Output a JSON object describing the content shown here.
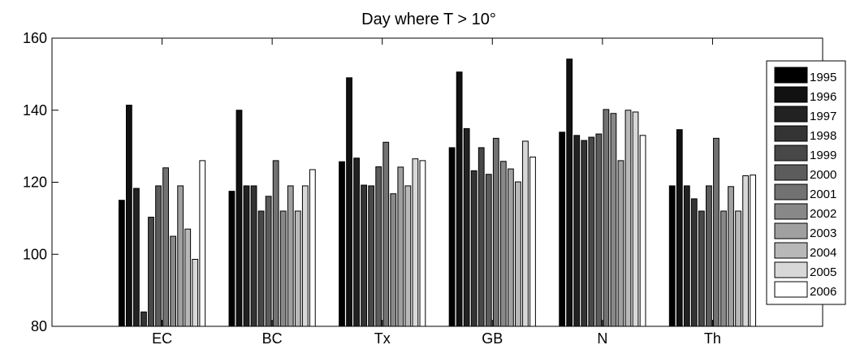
{
  "chart_data": {
    "type": "bar",
    "title": "Day where T > 10°",
    "xlabel": "",
    "ylabel": "",
    "categories": [
      "EC",
      "BC",
      "Tx",
      "GB",
      "N",
      "Th"
    ],
    "ylim": [
      80,
      160
    ],
    "yticks": [
      80,
      100,
      120,
      140,
      160
    ],
    "grid": false,
    "legend_position": "right",
    "series": [
      {
        "name": "1995",
        "color": "#000000",
        "values": [
          115,
          117.5,
          125.7,
          129.6,
          133.9,
          119
        ]
      },
      {
        "name": "1996",
        "color": "#111111",
        "values": [
          141.4,
          140,
          149,
          150.6,
          154.2,
          134.6
        ]
      },
      {
        "name": "1997",
        "color": "#222222",
        "values": [
          118.3,
          119,
          126.7,
          134.9,
          133,
          119
        ]
      },
      {
        "name": "1998",
        "color": "#343434",
        "values": [
          84,
          119,
          119.2,
          123.2,
          131.6,
          115.4
        ]
      },
      {
        "name": "1999",
        "color": "#484848",
        "values": [
          110.3,
          112,
          119,
          129.6,
          132.5,
          112
        ]
      },
      {
        "name": "2000",
        "color": "#5c5c5c",
        "values": [
          119,
          116.1,
          124.3,
          122.2,
          133.4,
          119
        ]
      },
      {
        "name": "2001",
        "color": "#727272",
        "values": [
          124,
          126,
          131.1,
          132.2,
          140.2,
          132.2
        ]
      },
      {
        "name": "2002",
        "color": "#888888",
        "values": [
          105,
          112,
          116.8,
          125.8,
          139.1,
          112
        ]
      },
      {
        "name": "2003",
        "color": "#a0a0a0",
        "values": [
          119,
          119,
          124.2,
          123.7,
          126,
          118.8
        ]
      },
      {
        "name": "2004",
        "color": "#b8b8b8",
        "values": [
          107,
          112,
          119,
          120.1,
          140,
          112
        ]
      },
      {
        "name": "2005",
        "color": "#d8d8d8",
        "values": [
          98.6,
          119,
          126.5,
          131.4,
          139.5,
          121.8
        ]
      },
      {
        "name": "2006",
        "color": "#ffffff",
        "values": [
          126,
          123.5,
          126,
          127,
          133,
          122
        ]
      }
    ]
  }
}
